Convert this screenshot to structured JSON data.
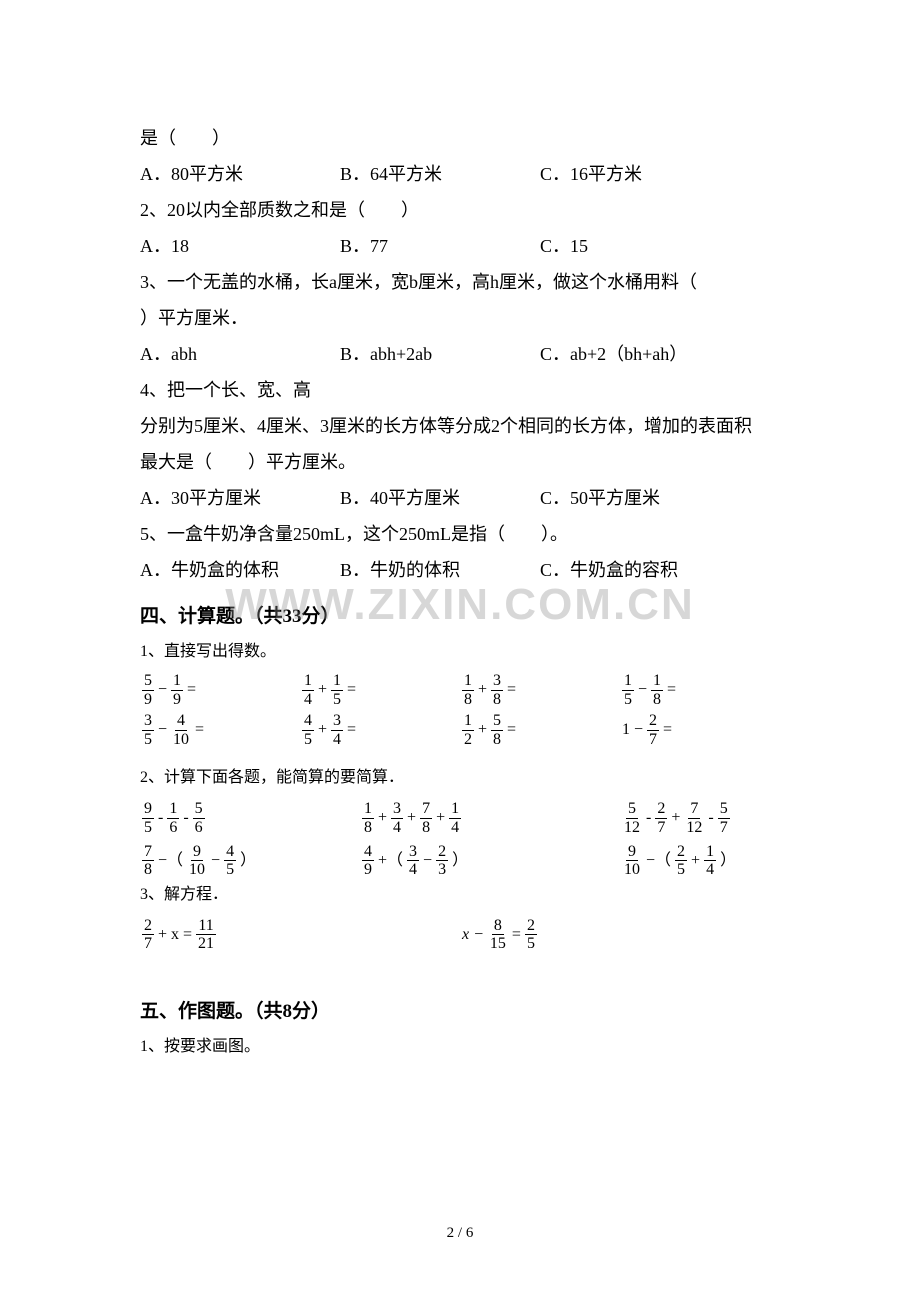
{
  "watermark": "WWW.ZIXIN.COM.CN",
  "pageNumber": "2 / 6",
  "q1": {
    "stem": "是（　　）",
    "a": "A．80平方米",
    "b": "B．64平方米",
    "c": "C．16平方米"
  },
  "q2": {
    "stem": "2、20以内全部质数之和是（　　）",
    "a": "A．18",
    "b": "B．77",
    "c": "C．15"
  },
  "q3": {
    "stem1": "3、一个无盖的水桶，长a厘米，宽b厘米，高h厘米，做这个水桶用料（",
    "stem2": "）平方厘米．",
    "a": "A．abh",
    "b": "B．abh+2ab",
    "c": "C．ab+2（bh+ah）"
  },
  "q4": {
    "stem1": "4、把一个长、宽、高",
    "stem2": "分别为5厘米、4厘米、3厘米的长方体等分成2个相同的长方体，增加的表面积",
    "stem3": "最大是（　　）平方厘米。",
    "a": "A．30平方厘米",
    "b": "B．40平方厘米",
    "c": "C．50平方厘米"
  },
  "q5": {
    "stem": "5、一盒牛奶净含量250mL，这个250mL是指（　　）。",
    "a": "A．牛奶盒的体积",
    "b": "B．牛奶的体积",
    "c": "C．牛奶盒的容积"
  },
  "sec4": {
    "title": "四、计算题。（共33分）",
    "p1_label": "1、直接写出得数。",
    "p1_row1": [
      {
        "a_n": "5",
        "a_d": "9",
        "op": "−",
        "b_n": "1",
        "b_d": "9"
      },
      {
        "a_n": "1",
        "a_d": "4",
        "op": "+",
        "b_n": "1",
        "b_d": "5"
      },
      {
        "a_n": "1",
        "a_d": "8",
        "op": "+",
        "b_n": "3",
        "b_d": "8"
      },
      {
        "a_n": "1",
        "a_d": "5",
        "op": "−",
        "b_n": "1",
        "b_d": "8"
      }
    ],
    "p1_row2": [
      {
        "a_n": "3",
        "a_d": "5",
        "op": "−",
        "b_n": "4",
        "b_d": "10"
      },
      {
        "a_n": "4",
        "a_d": "5",
        "op": "+",
        "b_n": "3",
        "b_d": "4"
      },
      {
        "a_n": "1",
        "a_d": "2",
        "op": "+",
        "b_n": "5",
        "b_d": "8"
      },
      {
        "lead": "1",
        "op": "−",
        "b_n": "2",
        "b_d": "7"
      }
    ],
    "p2_label": "2、计算下面各题，能简算的要简算．",
    "p2_row1": {
      "c1": [
        {
          "n": "9",
          "d": "5"
        },
        {
          "op": "-"
        },
        {
          "n": "1",
          "d": "6"
        },
        {
          "op": "-"
        },
        {
          "n": "5",
          "d": "6"
        }
      ],
      "c2": [
        {
          "n": "1",
          "d": "8"
        },
        {
          "op": "+"
        },
        {
          "n": "3",
          "d": "4"
        },
        {
          "op": "+"
        },
        {
          "n": "7",
          "d": "8"
        },
        {
          "op": "+"
        },
        {
          "n": "1",
          "d": "4"
        }
      ],
      "c3": [
        {
          "n": "5",
          "d": "12"
        },
        {
          "op": "-"
        },
        {
          "n": "2",
          "d": "7"
        },
        {
          "op": "+"
        },
        {
          "n": "7",
          "d": "12"
        },
        {
          "op": "-"
        },
        {
          "n": "5",
          "d": "7"
        }
      ]
    },
    "p2_row2": {
      "c1": [
        {
          "n": "7",
          "d": "8"
        },
        {
          "op": "−（"
        },
        {
          "n": "9",
          "d": "10"
        },
        {
          "op": "−"
        },
        {
          "n": "4",
          "d": "5"
        },
        {
          "op": "）"
        }
      ],
      "c2": [
        {
          "n": "4",
          "d": "9"
        },
        {
          "op": "+（"
        },
        {
          "n": "3",
          "d": "4"
        },
        {
          "op": "−"
        },
        {
          "n": "2",
          "d": "3"
        },
        {
          "op": "）"
        }
      ],
      "c3": [
        {
          "n": "9",
          "d": "10"
        },
        {
          "op": "−（"
        },
        {
          "n": "2",
          "d": "5"
        },
        {
          "op": "+"
        },
        {
          "n": "1",
          "d": "4"
        },
        {
          "op": "）"
        }
      ]
    },
    "p3_label": "3、解方程．",
    "p3_eq1": {
      "a_n": "2",
      "a_d": "7",
      "mid": "+ x =",
      "b_n": "11",
      "b_d": "21"
    },
    "p3_eq2": {
      "lead": "x −",
      "a_n": "8",
      "a_d": "15",
      "mid": "=",
      "b_n": "2",
      "b_d": "5"
    }
  },
  "sec5": {
    "title": "五、作图题。（共8分）",
    "p1": "1、按要求画图。"
  }
}
